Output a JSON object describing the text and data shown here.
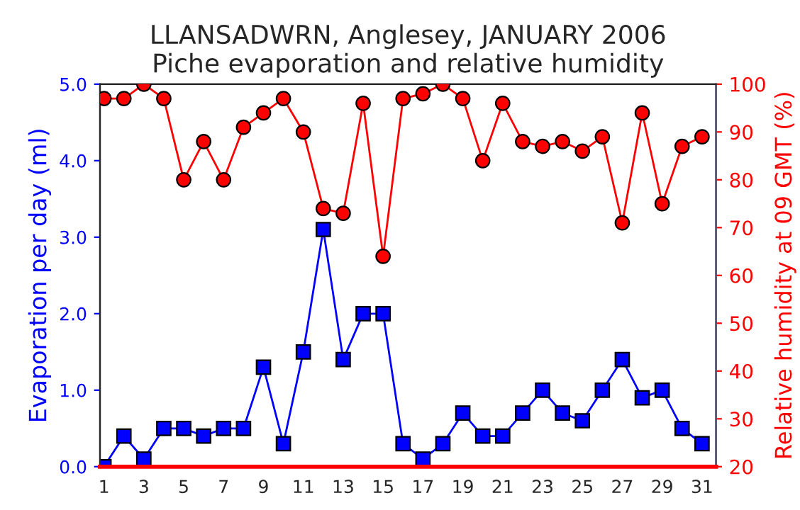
{
  "chart_data": {
    "type": "line",
    "title": "LLANSADWRN, Anglesey, JANUARY 2006\nPiche evaporation and relative humidity",
    "x": [
      1,
      2,
      3,
      4,
      5,
      6,
      7,
      8,
      9,
      10,
      11,
      12,
      13,
      14,
      15,
      16,
      17,
      18,
      19,
      20,
      21,
      22,
      23,
      24,
      25,
      26,
      27,
      28,
      29,
      30,
      31
    ],
    "xlim": [
      0.8,
      31.7
    ],
    "xticks": [
      1,
      3,
      5,
      7,
      9,
      11,
      13,
      15,
      17,
      19,
      21,
      23,
      25,
      27,
      29,
      31
    ],
    "ylabel": "Evaporation per day (ml)",
    "y2label": "Relative humidity at 09 GMT (%)",
    "ylim": [
      0,
      5
    ],
    "yticks": [
      {
        "value": 0,
        "label": "0.0"
      },
      {
        "value": 1,
        "label": "1.0"
      },
      {
        "value": 2,
        "label": "2.0"
      },
      {
        "value": 3,
        "label": "3.0"
      },
      {
        "value": 4,
        "label": "4.0"
      },
      {
        "value": 5,
        "label": "5.0"
      }
    ],
    "y2lim": [
      20,
      100
    ],
    "y2ticks": [
      20,
      30,
      40,
      50,
      60,
      70,
      80,
      90,
      100
    ],
    "grid": false,
    "series": [
      {
        "color": "#0000ff",
        "marker": "square",
        "values": [
          0,
          0.4,
          0.1,
          0.5,
          0.5,
          0.4,
          0.5,
          0.5,
          1.3,
          0.3,
          1.5,
          3.1,
          1.4,
          2.0,
          2.0,
          0.3,
          0.1,
          0.3,
          0.7,
          0.4,
          0.4,
          0.7,
          1.0,
          0.7,
          0.6,
          1.0,
          1.4,
          0.9,
          1.0,
          0.5,
          0.3
        ]
      },
      {
        "color": "#ff0000",
        "marker": "circle",
        "axis": "y2",
        "values": [
          97,
          97,
          100,
          97,
          80,
          88,
          80,
          91,
          94,
          97,
          90,
          74,
          73,
          96,
          64,
          97,
          98,
          100,
          97,
          84,
          96,
          88,
          87,
          88,
          86,
          89,
          71,
          94,
          75,
          87,
          89
        ]
      }
    ]
  }
}
